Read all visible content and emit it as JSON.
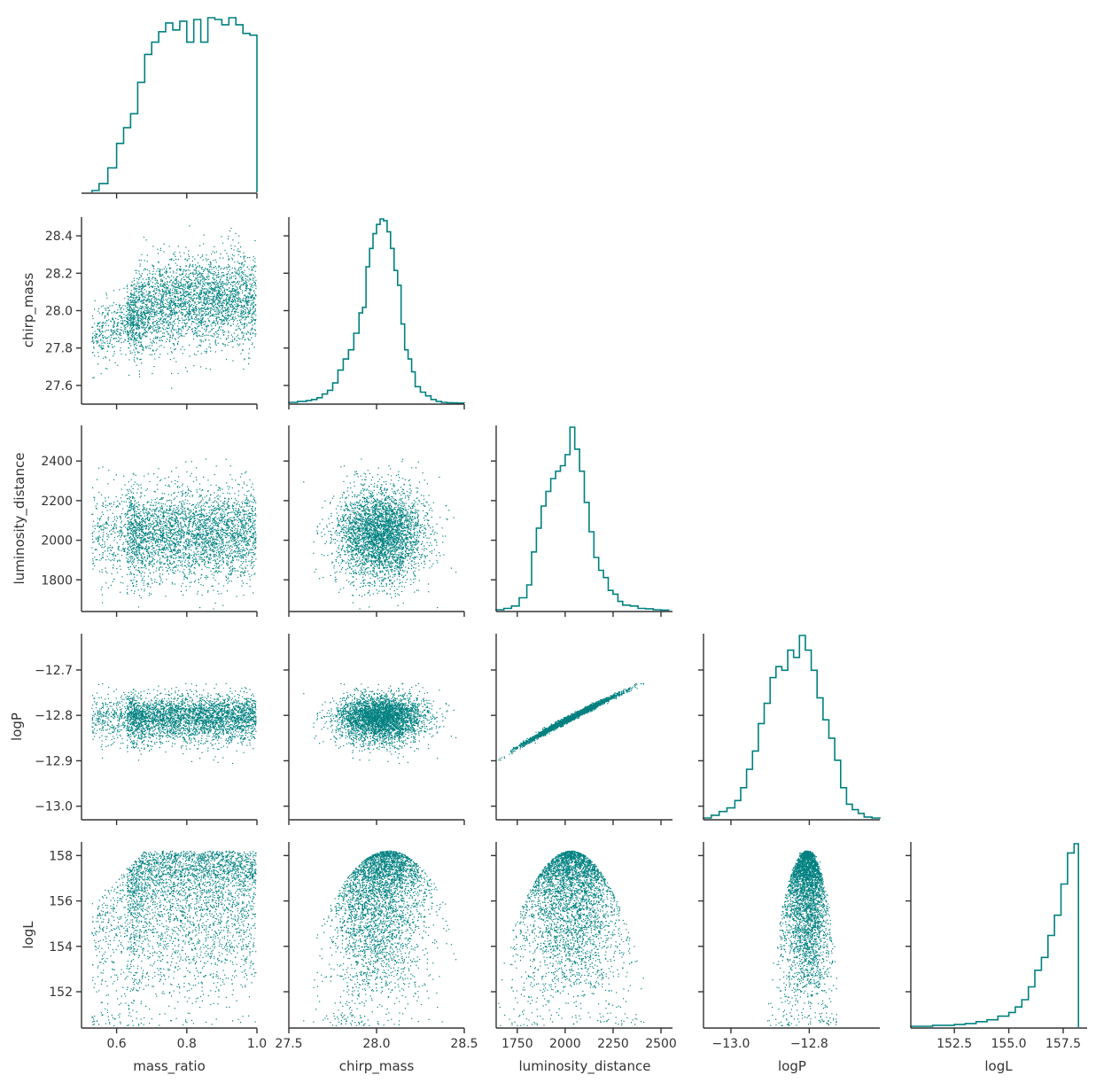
{
  "chart_data": {
    "type": "pairplot-corner",
    "style": {
      "color": "#008080",
      "axis_color": "#333333",
      "grid": false
    },
    "variables": [
      {
        "name": "mass_ratio",
        "lim": [
          0.5,
          1.0
        ],
        "ticks": [
          0.6,
          0.8,
          1.0
        ],
        "tick_labels": [
          "0.6",
          "0.8",
          "1.0"
        ]
      },
      {
        "name": "chirp_mass",
        "lim": [
          27.5,
          28.5
        ],
        "ticks": [
          27.5,
          28.0,
          28.5
        ],
        "tick_labels": [
          "27.5",
          "28.0",
          "28.5"
        ],
        "ylim": [
          27.5,
          28.5
        ],
        "yticks": [
          27.6,
          27.8,
          28.0,
          28.2,
          28.4
        ],
        "ytick_labels": [
          "27.6",
          "27.8",
          "28.0",
          "28.2",
          "28.4"
        ]
      },
      {
        "name": "luminosity_distance",
        "lim": [
          1640,
          2560
        ],
        "ticks": [
          1750,
          2000,
          2250,
          2500
        ],
        "tick_labels": [
          "1750",
          "2000",
          "2250",
          "2500"
        ],
        "ylim": [
          1640,
          2580
        ],
        "yticks": [
          1800,
          2000,
          2200,
          2400
        ],
        "ytick_labels": [
          "1800",
          "2000",
          "2200",
          "2400"
        ]
      },
      {
        "name": "logP",
        "lim": [
          -13.07,
          -12.62
        ],
        "ticks": [
          -13.0,
          -12.8
        ],
        "tick_labels": [
          "−13.0",
          "−12.8"
        ],
        "ylim": [
          -13.03,
          -12.62
        ],
        "yticks": [
          -13.0,
          -12.9,
          -12.8,
          -12.7
        ],
        "ytick_labels": [
          "−13.0",
          "−12.9",
          "−12.8",
          "−12.7"
        ]
      },
      {
        "name": "logL",
        "lim": [
          150.5,
          158.6
        ],
        "ticks": [
          152.5,
          155.0,
          157.5
        ],
        "tick_labels": [
          "152.5",
          "155.0",
          "157.5"
        ],
        "ylim": [
          150.4,
          158.6
        ],
        "yticks": [
          152,
          154,
          156,
          158
        ],
        "ytick_labels": [
          "152",
          "154",
          "156",
          "158"
        ]
      }
    ],
    "histograms": {
      "mass_ratio": {
        "edges": [
          0.53,
          0.55,
          0.575,
          0.6,
          0.62,
          0.64,
          0.66,
          0.68,
          0.7,
          0.72,
          0.74,
          0.76,
          0.78,
          0.8,
          0.82,
          0.84,
          0.86,
          0.88,
          0.9,
          0.92,
          0.94,
          0.96,
          0.98,
          1.0
        ],
        "density": [
          0.01,
          0.05,
          0.14,
          0.28,
          0.37,
          0.45,
          0.63,
          0.79,
          0.86,
          0.92,
          0.97,
          0.93,
          0.98,
          0.86,
          0.99,
          0.86,
          1.0,
          0.99,
          0.96,
          1.0,
          0.96,
          0.91,
          0.9
        ]
      },
      "chirp_mass": {
        "edges": [
          27.5,
          27.55,
          27.6,
          27.63,
          27.66,
          27.69,
          27.72,
          27.75,
          27.78,
          27.81,
          27.84,
          27.87,
          27.9,
          27.92,
          27.94,
          27.96,
          27.98,
          28.0,
          28.02,
          28.04,
          28.06,
          28.08,
          28.1,
          28.12,
          28.14,
          28.16,
          28.18,
          28.2,
          28.22,
          28.25,
          28.28,
          28.31,
          28.34,
          28.37,
          28.4,
          28.43,
          28.46,
          28.5
        ],
        "density": [
          0.005,
          0.01,
          0.015,
          0.02,
          0.03,
          0.05,
          0.07,
          0.11,
          0.18,
          0.24,
          0.29,
          0.38,
          0.49,
          0.52,
          0.74,
          0.84,
          0.92,
          0.97,
          1.0,
          0.99,
          0.93,
          0.84,
          0.72,
          0.64,
          0.43,
          0.29,
          0.24,
          0.17,
          0.09,
          0.06,
          0.04,
          0.02,
          0.01,
          0.005,
          0.003,
          0.002,
          0.001
        ]
      },
      "luminosity_distance": {
        "edges": [
          1640,
          1680,
          1720,
          1760,
          1800,
          1825,
          1850,
          1875,
          1900,
          1925,
          1950,
          1975,
          2000,
          2025,
          2050,
          2075,
          2100,
          2125,
          2150,
          2175,
          2200,
          2225,
          2250,
          2275,
          2300,
          2340,
          2380,
          2420,
          2460,
          2500,
          2540
        ],
        "density": [
          0.005,
          0.012,
          0.025,
          0.07,
          0.14,
          0.32,
          0.45,
          0.57,
          0.65,
          0.72,
          0.76,
          0.79,
          0.85,
          1.0,
          0.88,
          0.76,
          0.59,
          0.43,
          0.29,
          0.22,
          0.18,
          0.11,
          0.09,
          0.05,
          0.03,
          0.025,
          0.012,
          0.01,
          0.005,
          0.003
        ]
      },
      "logP": {
        "edges": [
          -13.07,
          -13.05,
          -13.03,
          -13.01,
          -12.99,
          -12.975,
          -12.96,
          -12.945,
          -12.93,
          -12.915,
          -12.9,
          -12.885,
          -12.87,
          -12.855,
          -12.84,
          -12.825,
          -12.81,
          -12.795,
          -12.78,
          -12.765,
          -12.75,
          -12.735,
          -12.72,
          -12.705,
          -12.69,
          -12.675,
          -12.66,
          -12.64,
          -12.62
        ],
        "density": [
          0.005,
          0.02,
          0.04,
          0.06,
          0.1,
          0.17,
          0.27,
          0.37,
          0.52,
          0.63,
          0.77,
          0.83,
          0.81,
          0.92,
          0.88,
          1.0,
          0.92,
          0.81,
          0.66,
          0.54,
          0.44,
          0.32,
          0.17,
          0.08,
          0.05,
          0.03,
          0.01,
          0.005
        ]
      },
      "logL": {
        "edges": [
          150.5,
          151.0,
          151.5,
          152.0,
          152.5,
          153.0,
          153.5,
          154.0,
          154.5,
          155.0,
          155.3,
          155.6,
          155.9,
          156.2,
          156.5,
          156.8,
          157.1,
          157.4,
          157.7,
          158.0,
          158.2
        ],
        "density": [
          0.005,
          0.005,
          0.01,
          0.01,
          0.015,
          0.02,
          0.03,
          0.04,
          0.06,
          0.08,
          0.11,
          0.15,
          0.22,
          0.31,
          0.38,
          0.5,
          0.61,
          0.78,
          0.95,
          1.0
        ]
      }
    },
    "scatter": {
      "n_points": 3600,
      "marginals": [
        {
          "name": "mass_ratio",
          "range": [
            0.53,
            1.0
          ]
        },
        {
          "name": "chirp_mass",
          "mean": 28.06,
          "sd": 0.12
        },
        {
          "name": "luminosity_distance",
          "mean": 2030,
          "sd": 120
        },
        {
          "name": "logP",
          "mean": -12.83,
          "sd": 0.055
        },
        {
          "name": "logL",
          "max": 158.2,
          "min": 150.5
        }
      ],
      "relations": [
        "chirp_mass rises with mass_ratio up to ~0.8 then plateaus",
        "logP increases tightly and monotonically with luminosity_distance",
        "logL is bounded above by a parabola-like envelope peaking near 158.2"
      ]
    }
  }
}
